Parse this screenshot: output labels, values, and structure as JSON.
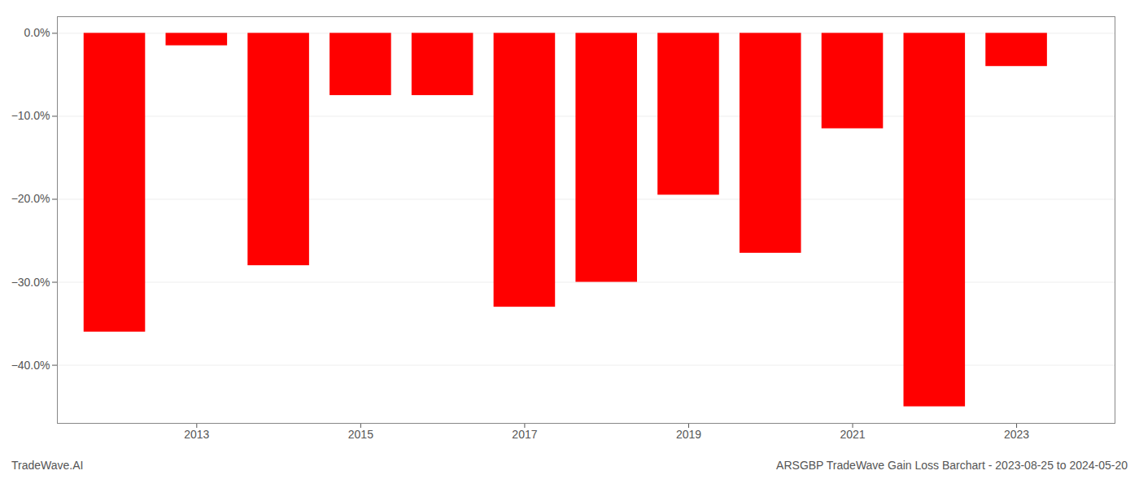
{
  "chart_data": {
    "type": "bar",
    "x": [
      2012,
      2013,
      2014,
      2015,
      2016,
      2017,
      2018,
      2019,
      2020,
      2021,
      2022,
      2023
    ],
    "values": [
      -36.0,
      -1.5,
      -28.0,
      -7.5,
      -7.5,
      -33.0,
      -30.0,
      -19.5,
      -26.5,
      -11.5,
      -45.0,
      -4.0
    ],
    "color": "#ff0000",
    "xlim": [
      2011.3,
      2024.2
    ],
    "xticks": [
      2013,
      2015,
      2017,
      2019,
      2021,
      2023
    ],
    "ylim": [
      -47,
      2
    ],
    "yticks": [
      {
        "value": 0,
        "label": "0.0%"
      },
      {
        "value": -10,
        "label": "−10.0%"
      },
      {
        "value": -20,
        "label": "−20.0%"
      },
      {
        "value": -30,
        "label": "−30.0%"
      },
      {
        "value": -40,
        "label": "−40.0%"
      }
    ],
    "grid": true,
    "annotations": [
      "TradeWave.AI",
      "ARSGBP TradeWave Gain Loss Barchart - 2023-08-25 to 2024-05-20"
    ]
  }
}
